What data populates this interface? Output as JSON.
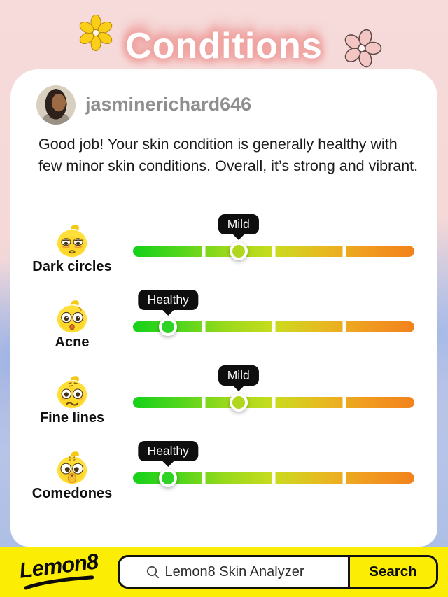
{
  "header": {
    "title": "Conditions"
  },
  "profile": {
    "username": "jasminerichard646"
  },
  "summary": "Good job! Your skin condition is generally healthy with few minor skin conditions. Overall, it’s strong and vibrant.",
  "conditions": [
    {
      "label": "Dark circles",
      "status": "Mild",
      "position_pct": 37.5,
      "emoji": "tired-face-emoji",
      "marker_color": "#aed71d"
    },
    {
      "label": "Acne",
      "status": "Healthy",
      "position_pct": 12.5,
      "emoji": "surprised-face-emoji",
      "marker_color": "#2ed326"
    },
    {
      "label": "Fine lines",
      "status": "Mild",
      "position_pct": 37.5,
      "emoji": "worried-face-emoji",
      "marker_color": "#aed71d"
    },
    {
      "label": "Comedones",
      "status": "Healthy",
      "position_pct": 12.5,
      "emoji": "pleading-face-emoji",
      "marker_color": "#2ed326"
    }
  ],
  "scale": {
    "segments": 4,
    "gradient": [
      "#15d11a",
      "#52d61c",
      "#9bd91c",
      "#c9dc1e",
      "#e6bb21",
      "#f09b20",
      "#f2821c"
    ]
  },
  "footer": {
    "logo": "Lemon8",
    "search_value": "Lemon8 Skin Analyzer",
    "search_button": "Search",
    "bar_color": "#fbed04"
  }
}
